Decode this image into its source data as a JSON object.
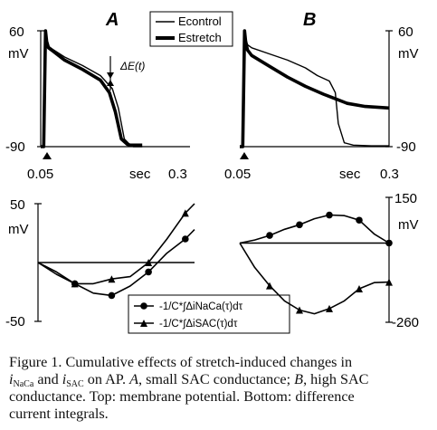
{
  "panels": {
    "A": {
      "label": "A",
      "top": {
        "y_max": "60",
        "y_unit": "mV",
        "y_min": "-90",
        "x_start": "0.05",
        "x_unit": "sec",
        "x_end": "0.3",
        "annotation": "ΔE(t)"
      },
      "bottom": {
        "y_max": "50",
        "y_unit": "mV",
        "y_min": "-50"
      }
    },
    "B": {
      "label": "B",
      "top": {
        "y_max": "60",
        "y_unit": "mV",
        "y_min": "-90",
        "x_start": "0.05",
        "x_unit": "sec",
        "x_end": "0.3"
      },
      "bottom": {
        "y_max": "150",
        "y_unit": "mV",
        "y_min": "-260"
      }
    }
  },
  "legend_top": {
    "items": [
      "Econtrol",
      "Estretch"
    ]
  },
  "legend_bottom": {
    "items": [
      "-1/C*∫ΔiNaCa(τ)dτ",
      "-1/C*∫ΔiSAC(τ)dτ"
    ]
  },
  "caption": {
    "line1": "Figure 1. Cumulative effects of stretch-induced changes in",
    "line2_prefix": "i",
    "line2_sub1": "NaCa",
    "line2_mid": " and ",
    "line2_i2": "i",
    "line2_sub2": "SAC",
    "line2_after_sac": " on AP. ",
    "line2_A": "A",
    "line2_suffix": ", small SAC conductance; ",
    "line2_B": "B",
    "line2_end": ", high SAC",
    "line3": "conductance. Top: membrane potential. Bottom: difference",
    "line4": "current integrals."
  },
  "chart_data": [
    {
      "type": "line",
      "panel": "A-top",
      "xlabel": "sec",
      "ylabel": "mV",
      "xlim": [
        0.05,
        0.3
      ],
      "ylim": [
        -90,
        60
      ],
      "series": [
        {
          "name": "Econtrol",
          "x": [
            0.05,
            0.055,
            0.058,
            0.06,
            0.063,
            0.07,
            0.09,
            0.12,
            0.15,
            0.17,
            0.18,
            0.19,
            0.2,
            0.205,
            0.21,
            0.22
          ],
          "y": [
            -90,
            -90,
            60,
            48,
            40,
            36,
            26,
            15,
            2,
            -15,
            -40,
            -80,
            -88,
            -90,
            -90,
            -90
          ]
        },
        {
          "name": "Estretch",
          "x": [
            0.05,
            0.055,
            0.058,
            0.06,
            0.063,
            0.07,
            0.09,
            0.12,
            0.15,
            0.165,
            0.175,
            0.185,
            0.195,
            0.2,
            0.21,
            0.22
          ],
          "y": [
            -90,
            -90,
            60,
            46,
            38,
            34,
            22,
            10,
            -4,
            -20,
            -45,
            -80,
            -87,
            -88,
            -88,
            -88
          ]
        }
      ]
    },
    {
      "type": "line",
      "panel": "B-top",
      "xlabel": "sec",
      "ylabel": "mV",
      "xlim": [
        0.05,
        0.3
      ],
      "ylim": [
        -90,
        60
      ],
      "series": [
        {
          "name": "Econtrol",
          "x": [
            0.05,
            0.055,
            0.058,
            0.06,
            0.063,
            0.07,
            0.1,
            0.13,
            0.16,
            0.18,
            0.2,
            0.21,
            0.215,
            0.225,
            0.24,
            0.27,
            0.3
          ],
          "y": [
            -90,
            -90,
            60,
            50,
            42,
            38,
            30,
            22,
            12,
            2,
            -5,
            -20,
            -60,
            -85,
            -88,
            -89,
            -89
          ]
        },
        {
          "name": "Estretch",
          "x": [
            0.05,
            0.055,
            0.058,
            0.06,
            0.063,
            0.07,
            0.1,
            0.13,
            0.16,
            0.19,
            0.21,
            0.23,
            0.26,
            0.3
          ],
          "y": [
            -90,
            -90,
            60,
            45,
            35,
            28,
            14,
            0,
            -12,
            -22,
            -28,
            -34,
            -38,
            -40
          ]
        }
      ]
    },
    {
      "type": "line",
      "panel": "A-bottom",
      "ylabel": "mV",
      "ylim": [
        -50,
        50
      ],
      "series": [
        {
          "name": "-1/C*∫ΔiNaCa(τ)dτ",
          "x": [
            0.05,
            0.07,
            0.09,
            0.11,
            0.13,
            0.15,
            0.17,
            0.19,
            0.21,
            0.22
          ],
          "y": [
            0,
            -8,
            -18,
            -26,
            -28,
            -20,
            -8,
            8,
            20,
            28
          ]
        },
        {
          "name": "-1/C*∫ΔiSAC(τ)dτ",
          "x": [
            0.05,
            0.07,
            0.09,
            0.11,
            0.13,
            0.15,
            0.17,
            0.19,
            0.21,
            0.22
          ],
          "y": [
            0,
            -10,
            -18,
            -18,
            -14,
            -12,
            0,
            20,
            42,
            50
          ]
        }
      ]
    },
    {
      "type": "line",
      "panel": "B-bottom",
      "ylabel": "mV",
      "ylim": [
        -260,
        150
      ],
      "series": [
        {
          "name": "-1/C*∫ΔiNaCa(τ)dτ",
          "x": [
            0.05,
            0.07,
            0.09,
            0.11,
            0.13,
            0.15,
            0.17,
            0.19,
            0.21,
            0.23,
            0.25
          ],
          "y": [
            0,
            10,
            25,
            45,
            60,
            80,
            92,
            90,
            75,
            30,
            0
          ]
        },
        {
          "name": "-1/C*∫ΔiSAC(τ)dτ",
          "x": [
            0.05,
            0.07,
            0.09,
            0.11,
            0.13,
            0.15,
            0.17,
            0.19,
            0.21,
            0.23,
            0.25
          ],
          "y": [
            0,
            -80,
            -140,
            -190,
            -220,
            -232,
            -215,
            -190,
            -150,
            -130,
            -128
          ]
        }
      ]
    }
  ]
}
